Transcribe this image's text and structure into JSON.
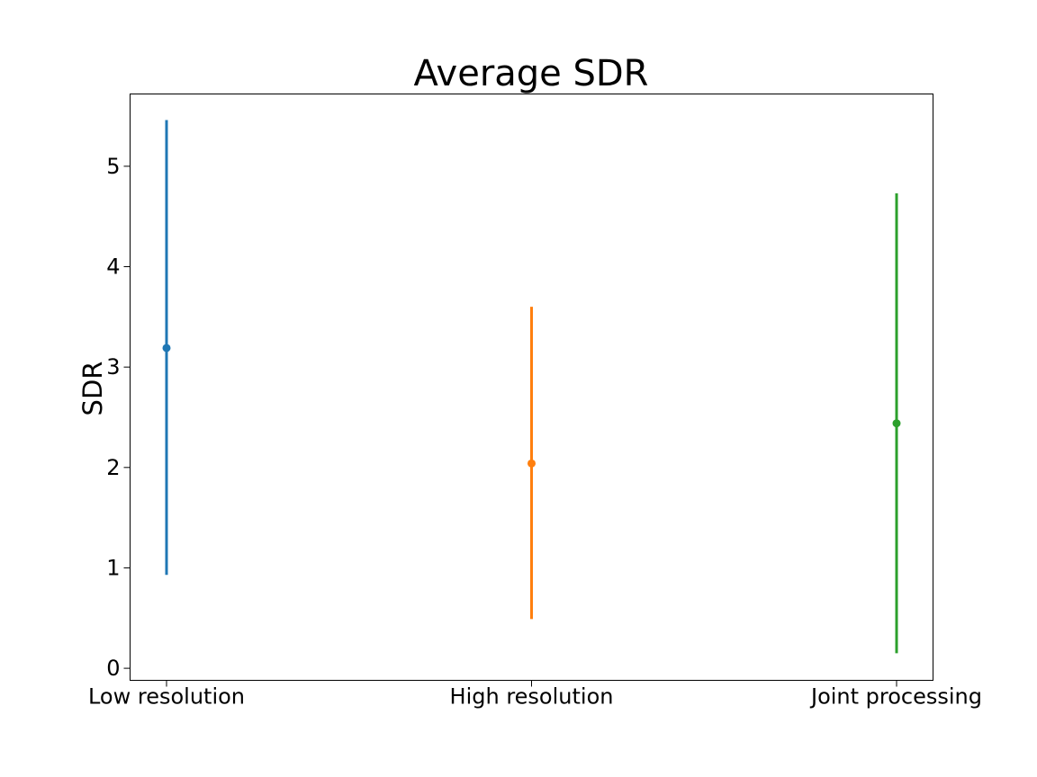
{
  "chart_data": {
    "type": "errorbar",
    "title": "Average SDR",
    "xlabel": "",
    "ylabel": "SDR",
    "categories": [
      "Low resolution",
      "High resolution",
      "Joint processing"
    ],
    "series": [
      {
        "category": "Low resolution",
        "mean": 3.19,
        "lower": 0.93,
        "upper": 5.46,
        "color": "#1f77b4"
      },
      {
        "category": "High resolution",
        "mean": 2.04,
        "lower": 0.49,
        "upper": 3.6,
        "color": "#ff7f0e"
      },
      {
        "category": "Joint processing",
        "mean": 2.44,
        "lower": 0.15,
        "upper": 4.73,
        "color": "#2ca02c"
      }
    ],
    "yticks": [
      "0",
      "1",
      "2",
      "3",
      "4",
      "5"
    ],
    "ylim": [
      -0.12,
      5.72
    ],
    "grid": false,
    "legend": "none"
  }
}
